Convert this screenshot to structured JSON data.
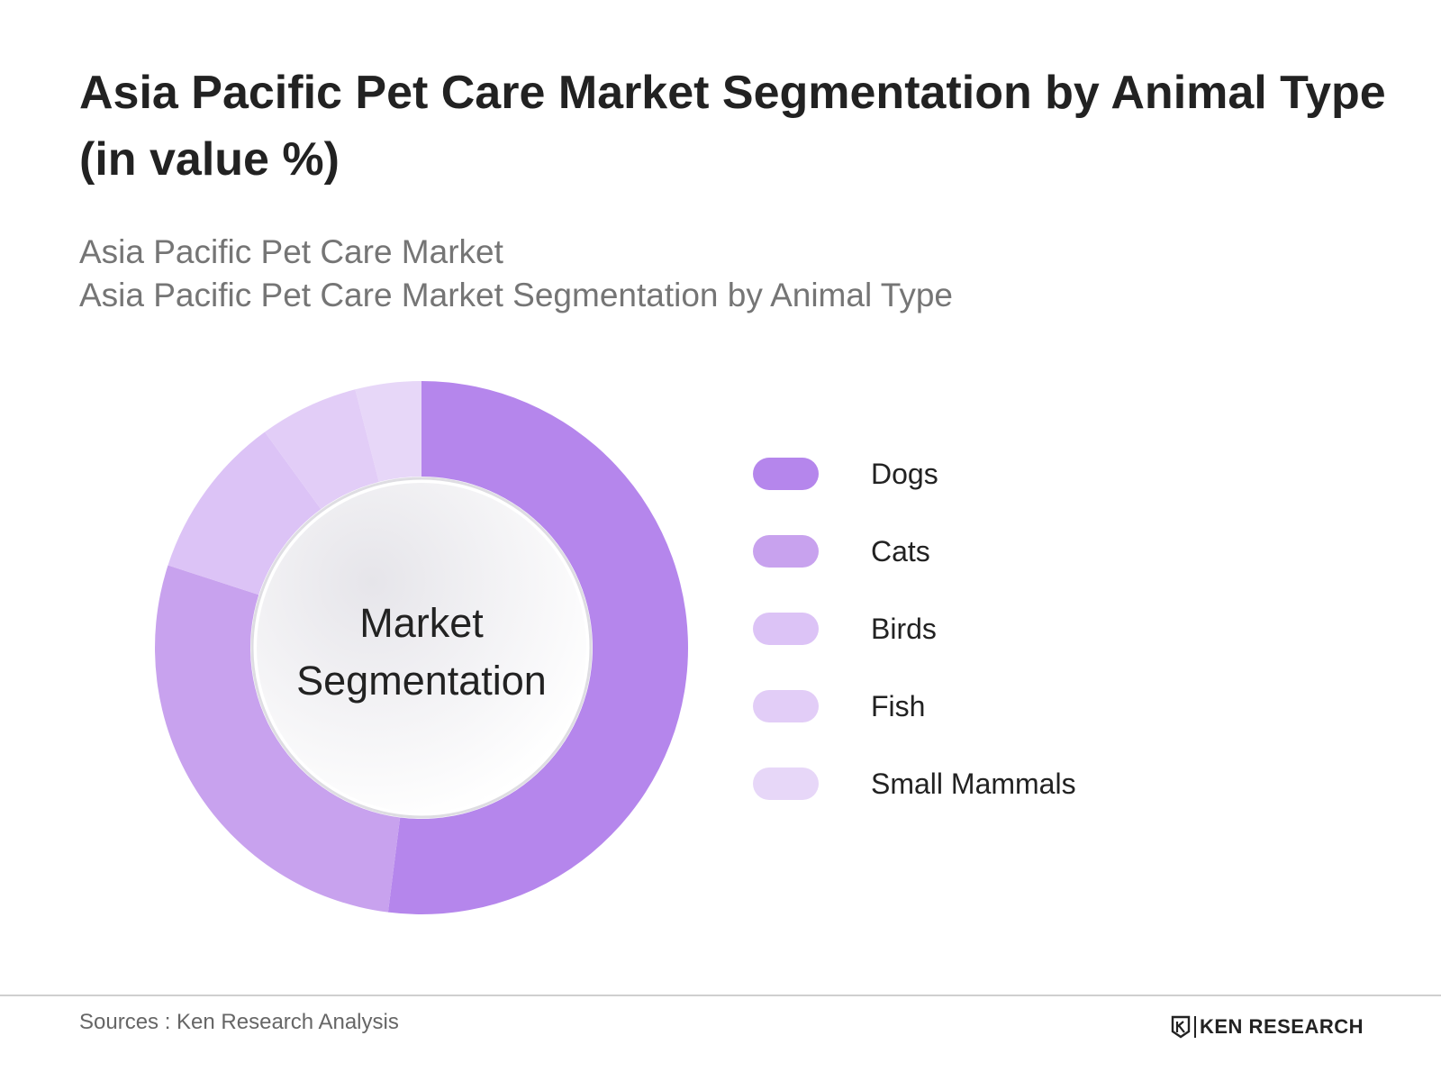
{
  "header": {
    "title": "Asia Pacific Pet Care Market Segmentation by Animal Type (in value %)",
    "subtitle_line1": "Asia Pacific Pet Care Market",
    "subtitle_line2": "Asia Pacific Pet Care Market Segmentation by Animal Type"
  },
  "chart_data": {
    "type": "pie",
    "variant": "donut",
    "center_label_line1": "Market",
    "center_label_line2": "Segmentation",
    "categories": [
      "Dogs",
      "Cats",
      "Birds",
      "Fish",
      "Small Mammals"
    ],
    "values": [
      52,
      28,
      10,
      6,
      4
    ],
    "colors": [
      "#b586ec",
      "#c8a2ee",
      "#dcc3f6",
      "#e2cdf7",
      "#e7d7f8"
    ],
    "legend_position": "right"
  },
  "footer": {
    "source": "Sources : Ken Research Analysis",
    "brand": "KEN RESEARCH",
    "brand_logo_icon": "ken-research-logo-icon"
  }
}
